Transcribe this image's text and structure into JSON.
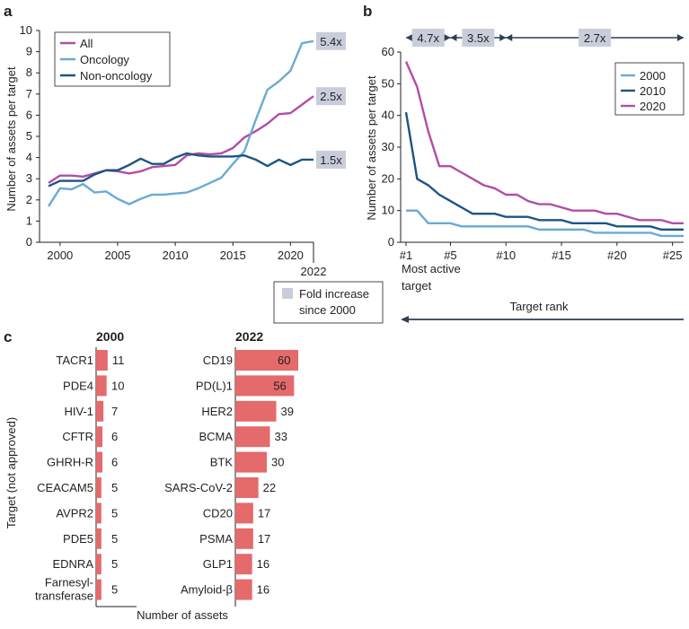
{
  "colors": {
    "all": "#b24da6",
    "oncology": "#6aaad3",
    "non_oncology": "#1b5585",
    "c2000": "#6aaad3",
    "c2010": "#1b5585",
    "c2020": "#b24da6",
    "bar": "#e46a6c",
    "fold_box": "#c9cddb",
    "axis": "#231f20"
  },
  "chart_data": [
    {
      "panel": "a",
      "type": "line",
      "ylabel": "Number of assets per target",
      "xlim": [
        1999,
        2022
      ],
      "ylim": [
        0,
        10
      ],
      "x_ticks": [
        "2000",
        "2005",
        "2010",
        "2015",
        "2020"
      ],
      "x_end_label": "2022",
      "y_ticks": [
        "0",
        "1",
        "2",
        "3",
        "4",
        "5",
        "6",
        "7",
        "8",
        "9",
        "10"
      ],
      "x": [
        1999,
        2000,
        2001,
        2002,
        2003,
        2004,
        2005,
        2006,
        2007,
        2008,
        2009,
        2010,
        2011,
        2012,
        2013,
        2014,
        2015,
        2016,
        2017,
        2018,
        2019,
        2020,
        2021,
        2022
      ],
      "series": [
        {
          "name": "All",
          "color_key": "all",
          "values": [
            2.8,
            3.15,
            3.15,
            3.1,
            3.25,
            3.4,
            3.35,
            3.25,
            3.35,
            3.55,
            3.6,
            3.65,
            4.1,
            4.2,
            4.15,
            4.2,
            4.45,
            4.95,
            5.25,
            5.6,
            6.05,
            6.1,
            6.5,
            6.9
          ]
        },
        {
          "name": "Oncology",
          "color_key": "oncology",
          "values": [
            1.7,
            2.55,
            2.5,
            2.75,
            2.35,
            2.4,
            2.05,
            1.8,
            2.05,
            2.25,
            2.25,
            2.3,
            2.35,
            2.55,
            2.8,
            3.05,
            3.7,
            4.3,
            5.8,
            7.2,
            7.6,
            8.1,
            9.4,
            9.5
          ]
        },
        {
          "name": "Non-oncology",
          "color_key": "non_oncology",
          "values": [
            2.65,
            2.9,
            2.9,
            2.9,
            3.2,
            3.4,
            3.4,
            3.65,
            3.95,
            3.7,
            3.7,
            4.0,
            4.2,
            4.1,
            4.05,
            4.05,
            4.05,
            4.1,
            3.9,
            3.6,
            3.9,
            3.65,
            3.9,
            3.9
          ]
        }
      ],
      "fold_labels": [
        "5.4x",
        "2.5x",
        "1.5x"
      ],
      "fold_legend": "Fold increase since 2000"
    },
    {
      "panel": "b",
      "type": "line",
      "ylabel": "Number of assets per target",
      "xlabel": "Target rank",
      "x_tick_labels": [
        "#1",
        "#5",
        "#10",
        "#15",
        "#20",
        "#25"
      ],
      "x_tick_values": [
        1,
        5,
        10,
        15,
        20,
        25
      ],
      "x_note": "Most active target",
      "xlim": [
        1,
        26
      ],
      "ylim": [
        0,
        60
      ],
      "y_ticks": [
        "0",
        "10",
        "20",
        "30",
        "40",
        "50",
        "60"
      ],
      "x": [
        1,
        2,
        3,
        4,
        5,
        6,
        7,
        8,
        9,
        10,
        11,
        12,
        13,
        14,
        15,
        16,
        17,
        18,
        19,
        20,
        21,
        22,
        23,
        24,
        25,
        26
      ],
      "series": [
        {
          "name": "2000",
          "color_key": "c2000",
          "values": [
            10,
            10,
            6,
            6,
            6,
            5,
            5,
            5,
            5,
            5,
            5,
            5,
            4,
            4,
            4,
            4,
            4,
            3,
            3,
            3,
            3,
            3,
            3,
            2,
            2,
            2
          ]
        },
        {
          "name": "2010",
          "color_key": "c2010",
          "values": [
            41,
            20,
            18,
            15,
            13,
            11,
            9,
            9,
            9,
            8,
            8,
            8,
            7,
            7,
            7,
            6,
            6,
            6,
            6,
            5,
            5,
            5,
            5,
            4,
            4,
            4
          ]
        },
        {
          "name": "2020",
          "color_key": "c2020",
          "values": [
            57,
            49,
            35,
            24,
            24,
            22,
            20,
            18,
            17,
            15,
            15,
            13,
            12,
            12,
            11,
            10,
            10,
            10,
            9,
            9,
            8,
            7,
            7,
            7,
            6,
            6
          ]
        }
      ],
      "range_labels": [
        "4.7x",
        "3.5x",
        "2.7x"
      ]
    },
    {
      "panel": "c",
      "type": "bar",
      "ylabel": "Target (not approved)",
      "xlabel": "Number of assets",
      "groups": [
        {
          "title": "2000",
          "categories": [
            "TACR1",
            "PDE4",
            "HIV-1",
            "CFTR",
            "GHRH-R",
            "CEACAM5",
            "AVPR2",
            "PDE5",
            "EDNRA",
            "Farnesyl-\ntransferase"
          ],
          "values": [
            11,
            10,
            7,
            6,
            6,
            5,
            5,
            5,
            5,
            5
          ]
        },
        {
          "title": "2022",
          "categories": [
            "CD19",
            "PD(L)1",
            "HER2",
            "BCMA",
            "BTK",
            "SARS-CoV-2",
            "CD20",
            "PSMA",
            "GLP1",
            "Amyloid-β"
          ],
          "values": [
            60,
            56,
            39,
            33,
            30,
            22,
            17,
            17,
            16,
            16
          ]
        }
      ]
    }
  ]
}
